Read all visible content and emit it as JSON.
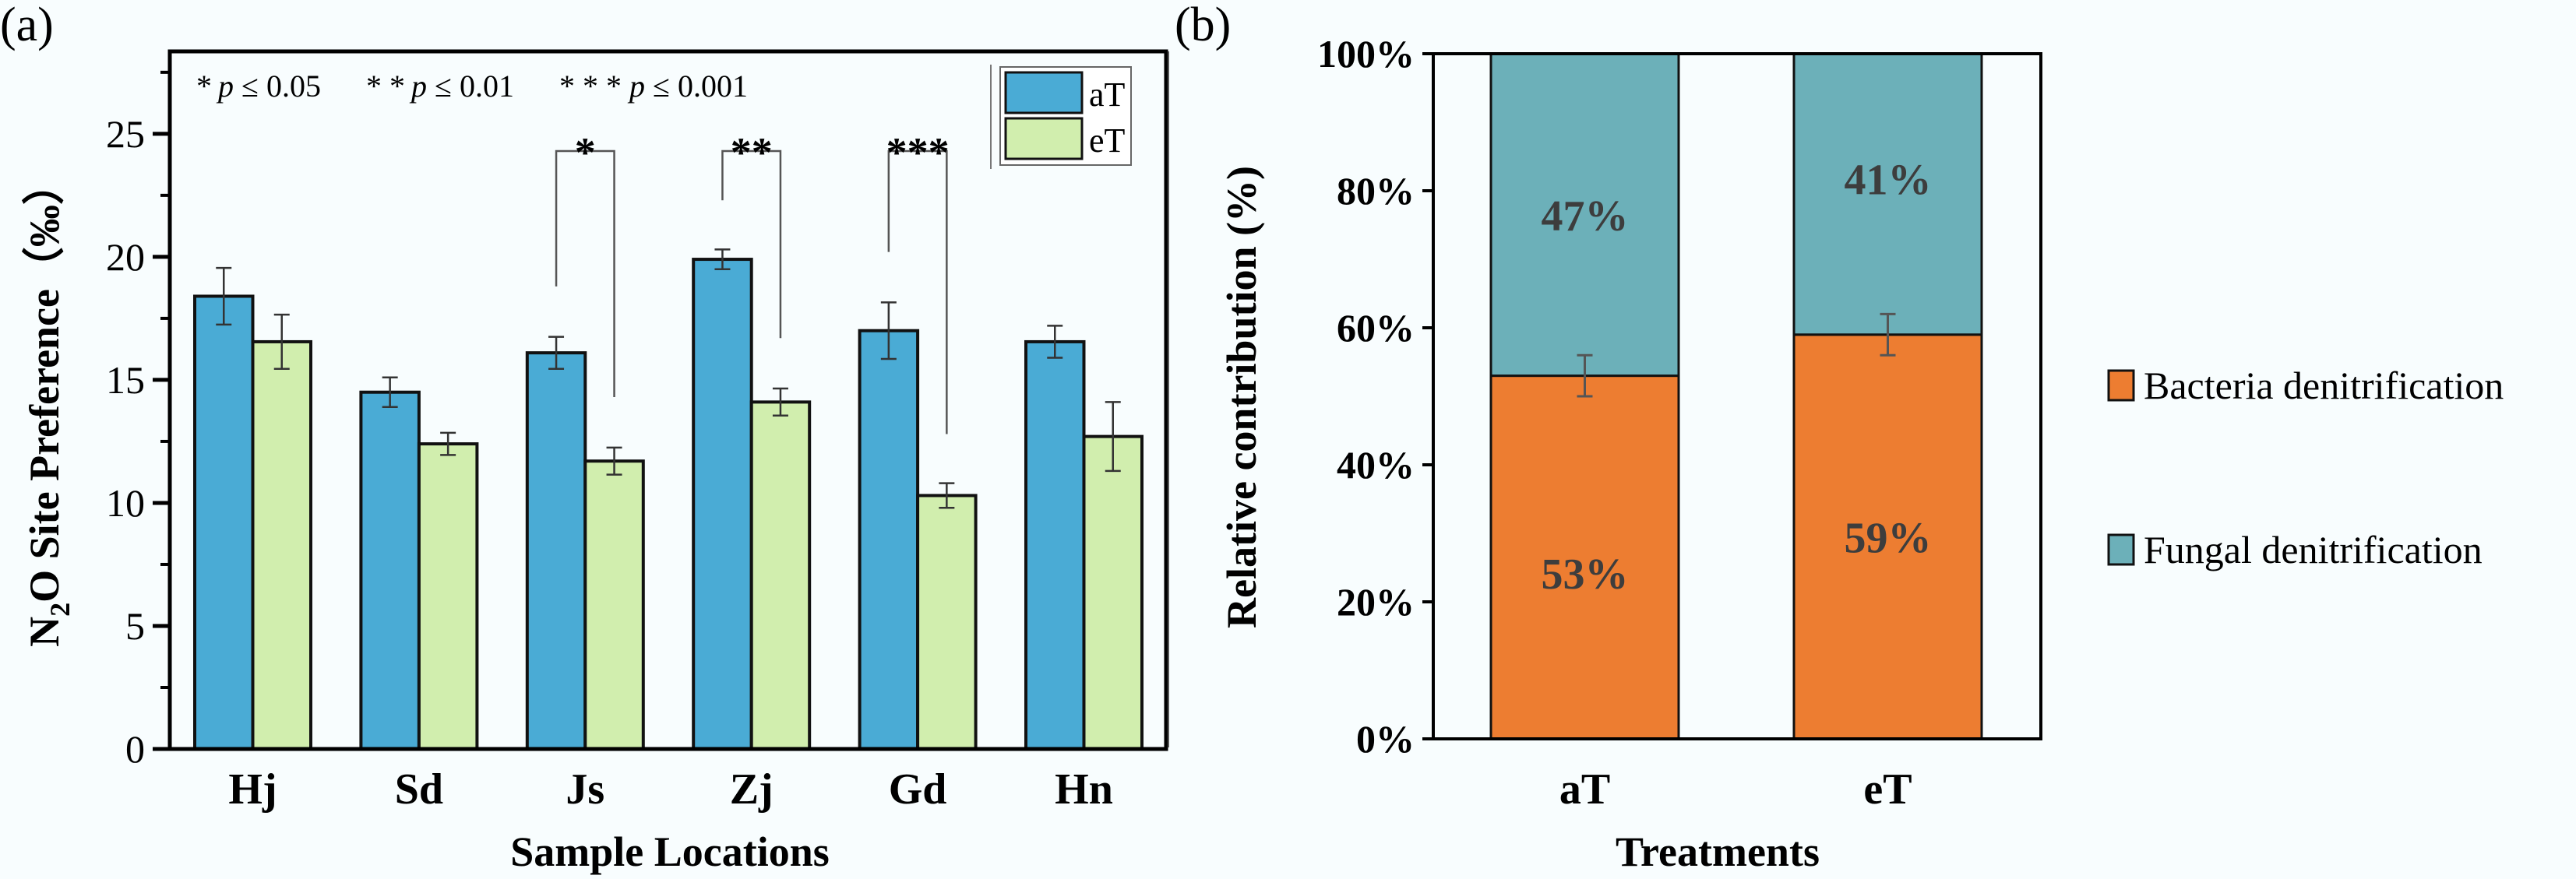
{
  "colors": {
    "aT": "#4aabd5",
    "eT": "#d1eeae",
    "bacteria": "#ed7d31",
    "fungal": "#6cb0b9",
    "pct_text": "#3d3d3d"
  },
  "chart_data": [
    {
      "panel": "(a)",
      "type": "bar",
      "title": "",
      "xlabel": "Sample Locations",
      "ylabel": "N2O Site Preference（‰）",
      "ylabel_parts": {
        "pre": "N",
        "sub": "2",
        "post": "O Site Preference（‰）"
      },
      "ylim": [
        0,
        28.35
      ],
      "yticks": [
        0,
        5,
        10,
        15,
        20,
        25
      ],
      "yticks_minor": [
        2.5,
        7.5,
        12.5,
        17.5,
        22.5,
        27.5
      ],
      "categories": [
        "Hj",
        "Sd",
        "Js",
        "Zj",
        "Gd",
        "Hn"
      ],
      "series": [
        {
          "name": "aT",
          "values": [
            18.4,
            14.5,
            16.1,
            19.9,
            17.0,
            16.55
          ],
          "errors": [
            1.15,
            0.6,
            0.65,
            0.4,
            1.15,
            0.65
          ]
        },
        {
          "name": "eT",
          "values": [
            16.55,
            12.4,
            11.7,
            14.1,
            10.3,
            12.7
          ],
          "errors": [
            1.1,
            0.45,
            0.55,
            0.55,
            0.5,
            1.4
          ]
        }
      ],
      "significance_note": {
        "one": "*",
        "one_p": "p",
        "one_t": " ≤ 0.05",
        "two": "* *",
        "two_p": "p",
        "two_t": " ≤ 0.01",
        "three": "* * *",
        "three_p": "p",
        "three_t": " ≤ 0.001"
      },
      "significance": [
        {
          "category": "Js",
          "label": "*",
          "bracket_y": 24.3,
          "left_leg_end": 18.8,
          "right_leg_end": 14.3
        },
        {
          "category": "Zj",
          "label": "**",
          "bracket_y": 24.3,
          "left_leg_end": 22.3,
          "right_leg_end": 16.7
        },
        {
          "category": "Gd",
          "label": "***",
          "bracket_y": 24.3,
          "left_leg_end": 20.2,
          "right_leg_end": 12.8
        }
      ],
      "legend": [
        "aT",
        "eT"
      ],
      "legend_position": "top-right",
      "grid": false
    },
    {
      "panel": "(b)",
      "type": "bar",
      "stacked": true,
      "title": "",
      "xlabel": "Treatments",
      "ylabel": "Relative contribution (%)",
      "ylim": [
        0,
        100
      ],
      "yticks": [
        "0%",
        "20%",
        "40%",
        "60%",
        "80%",
        "100%"
      ],
      "categories": [
        "aT",
        "eT"
      ],
      "series": [
        {
          "name": "Bacteria denitrification",
          "values": [
            53,
            59
          ],
          "labels": [
            "53%",
            "59%"
          ],
          "errors": [
            3,
            3
          ]
        },
        {
          "name": "Fungal denitrification",
          "values": [
            47,
            41
          ],
          "labels": [
            "47%",
            "41%"
          ]
        }
      ],
      "legend": [
        "Bacteria denitrification",
        "Fungal denitrification"
      ],
      "legend_position": "right",
      "grid": false
    }
  ]
}
